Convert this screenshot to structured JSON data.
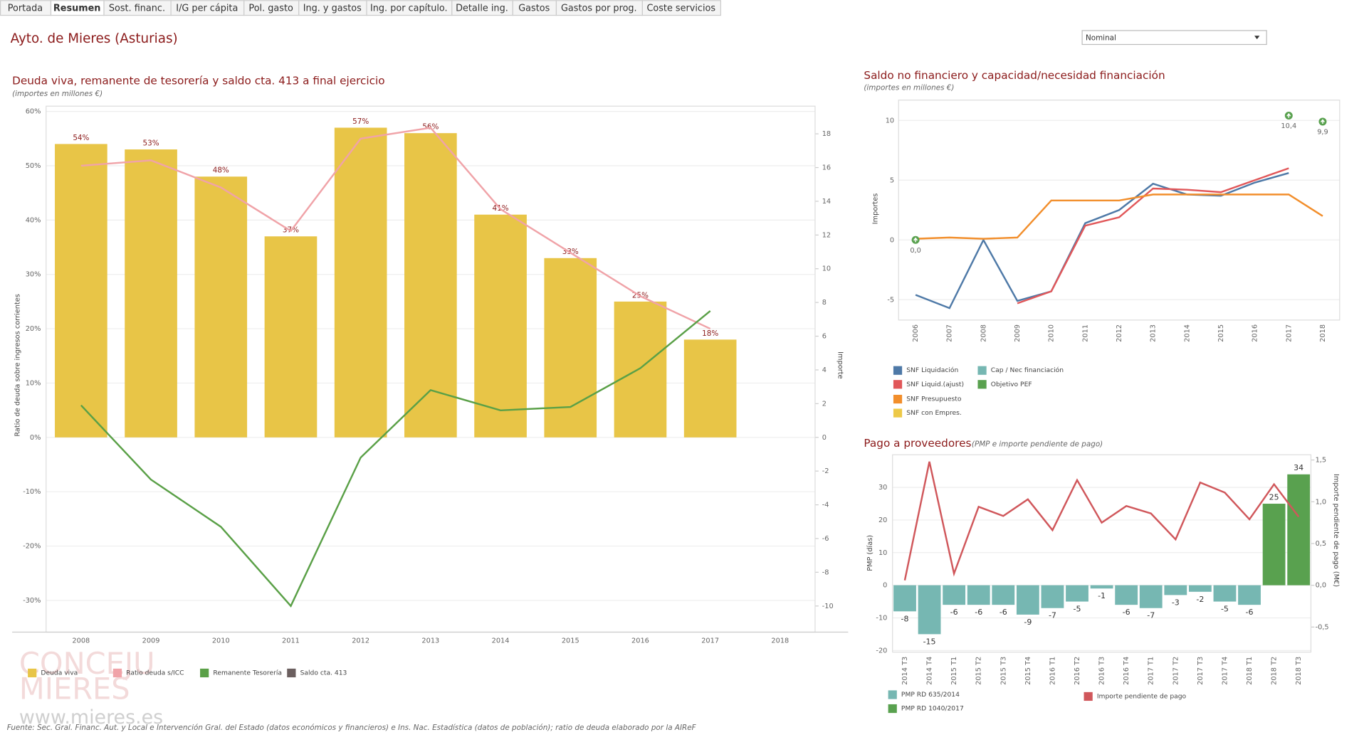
{
  "tabs": [
    "Portada",
    "Resumen",
    "Sost. financ.",
    "I/G per cápita",
    "Pol. gasto",
    "Ing. y gastos",
    "Ing. por capítulo.",
    "Detalle ing.",
    "Gastos",
    "Gastos por prog.",
    "Coste servicios"
  ],
  "header": {
    "title": "Ayto. de Mieres (Asturias)",
    "dropdown": "Nominal"
  },
  "footer": {
    "source": "Fuente: Sec. Gral. Financ. Aut. y Local e Intervención Gral. del Estado  (datos económicos y financieros) e Ins. Nac. Estadística (datos de población); ratio de deuda elaborado por la AIReF",
    "watermark": [
      "CONCEJU",
      "MIERES",
      "www.mieres.es"
    ]
  },
  "chart_data": [
    {
      "type": "bar",
      "title": "Deuda viva, remanente de tesorería y saldo cta. 413  a final ejercicio",
      "subtitle": "(importes en millones €)",
      "y_label": "Ratio de deuda sobre ingresos corrientes",
      "y2_label": "Importe",
      "categories": [
        "2008",
        "2009",
        "2010",
        "2011",
        "2012",
        "2013",
        "2014",
        "2015",
        "2016",
        "2017",
        "2018"
      ],
      "ylim": [
        -35.84,
        60.96
      ],
      "yticks": [
        {
          "value": 60,
          "label": "60%"
        },
        {
          "value": 50,
          "label": "50%"
        },
        {
          "value": 40,
          "label": "40%"
        },
        {
          "value": 30,
          "label": "30%"
        },
        {
          "value": 20,
          "label": "20%"
        },
        {
          "value": 10,
          "label": "10%"
        },
        {
          "value": 0,
          "label": "0%"
        },
        {
          "value": -10,
          "label": "-10%"
        },
        {
          "value": -20,
          "label": "-20%"
        },
        {
          "value": -30,
          "label": "-30%"
        }
      ],
      "y2lim": [
        -11.55,
        19.64
      ],
      "y2ticks": [
        18,
        16,
        14,
        12,
        10,
        8,
        6,
        4,
        2,
        0,
        -2,
        -4,
        -6,
        -8,
        -10
      ],
      "grid": true,
      "series": [
        {
          "name": "Deuda viva",
          "color": "#e8c547",
          "values": [
            54,
            53,
            48,
            37,
            57,
            56,
            41,
            33,
            25,
            18,
            null
          ],
          "value_labels": [
            "54%",
            "53%",
            "48%",
            "37%",
            "57%",
            "56%",
            "41%",
            "33%",
            "25%",
            "18%",
            null
          ]
        },
        {
          "name": "Ratio deuda s/ICC",
          "type": "line",
          "color": "#f0a3a8",
          "values": [
            50,
            51,
            46,
            38,
            55,
            57,
            42,
            34,
            26,
            20,
            null
          ]
        },
        {
          "name": "Remanente Tesorería",
          "type": "line",
          "axis": "y2",
          "color": "#5aa047",
          "values": [
            1.9,
            -2.5,
            -5.3,
            -10,
            -1.2,
            2.8,
            1.6,
            1.8,
            4.1,
            7.5,
            null
          ]
        },
        {
          "name": "Saldo cta. 413",
          "type": "line",
          "axis": "y2",
          "color": "#6b5f5f",
          "values": [
            null,
            null,
            null,
            null,
            null,
            null,
            null,
            null,
            null,
            null,
            null
          ]
        }
      ]
    },
    {
      "type": "line",
      "title": "Saldo no financiero y capacidad/necesidad financiación",
      "subtitle": "(importes en millones €)",
      "y_label": "Importes",
      "categories": [
        "2006",
        "2007",
        "2008",
        "2009",
        "2010",
        "2011",
        "2012",
        "2013",
        "2014",
        "2015",
        "2016",
        "2017",
        "2018"
      ],
      "ylim": [
        -6.7,
        11.7
      ],
      "yticks": [
        10,
        5,
        0,
        -5
      ],
      "grid": true,
      "series": [
        {
          "name": "SNF Liquidación",
          "color": "#4e79a7",
          "values": [
            -4.6,
            -5.7,
            0,
            -5.1,
            -4.3,
            1.4,
            2.5,
            4.7,
            3.8,
            3.7,
            4.8,
            5.6,
            null
          ]
        },
        {
          "name": "SNF Liquid.(ajust)",
          "color": "#e15759",
          "values": [
            null,
            null,
            null,
            -5.3,
            -4.3,
            1.2,
            1.9,
            4.3,
            4.2,
            4.0,
            5.0,
            6.0,
            null
          ]
        },
        {
          "name": "SNF Presupuesto",
          "color": "#f28e2b",
          "values": [
            0.1,
            0.2,
            0.1,
            0.2,
            3.3,
            3.3,
            3.3,
            3.8,
            3.8,
            3.8,
            3.8,
            3.8,
            2.0
          ]
        },
        {
          "name": "SNF con Empres.",
          "color": "#edc948",
          "values": [
            null,
            null,
            null,
            null,
            null,
            null,
            null,
            null,
            null,
            null,
            null,
            null,
            null
          ]
        },
        {
          "name": "Cap / Nec financiación",
          "color": "#76b7b2",
          "values": [
            null,
            null,
            null,
            null,
            null,
            null,
            null,
            null,
            null,
            null,
            null,
            null,
            null
          ]
        },
        {
          "name": "Objetivo PEF",
          "type": "scatter",
          "color": "#59a14f",
          "values": [
            0,
            null,
            null,
            null,
            null,
            null,
            null,
            null,
            null,
            null,
            null,
            10.4,
            9.9
          ],
          "value_labels": [
            "0,0",
            null,
            null,
            null,
            null,
            null,
            null,
            null,
            null,
            null,
            null,
            "10,4",
            "9,9"
          ]
        }
      ]
    },
    {
      "type": "bar",
      "title": "Pago a proveedores",
      "subtitle": "(PMP e importe pendiente de pago)",
      "y_label": "PMP (días)",
      "y2_label": "Importe pendiente de pago (M€)",
      "categories": [
        "2014 T3",
        "2014 T4",
        "2015 T1",
        "2015 T2",
        "2015 T3",
        "2015 T4",
        "2016 T1",
        "2016 T2",
        "2016 T3",
        "2016 T4",
        "2017 T1",
        "2017 T2",
        "2017 T3",
        "2017 T4",
        "2018 T1",
        "2018 T2",
        "2018 T3"
      ],
      "ylim": [
        -20.5,
        40
      ],
      "yticks": [
        30,
        20,
        10,
        0,
        -10,
        -20
      ],
      "y2lim": [
        -0.8,
        1.5625
      ],
      "y2ticks": [
        {
          "value": 1.5,
          "label": "1,5"
        },
        {
          "value": 1,
          "label": "1,0"
        },
        {
          "value": 0.5,
          "label": "0,5"
        },
        {
          "value": 0,
          "label": "0,0"
        },
        {
          "value": -0.5,
          "label": "-0,5"
        }
      ],
      "grid": true,
      "series": [
        {
          "name": "PMP RD 635/2014",
          "color": "#76b7b2",
          "values": [
            -8,
            -15,
            -6,
            -6,
            -6,
            -9,
            -7,
            -5,
            -1,
            -6,
            -7,
            -3,
            -2,
            -5,
            -6,
            null,
            null
          ]
        },
        {
          "name": "PMP RD 1040/2017",
          "color": "#59a14f",
          "values": [
            null,
            null,
            null,
            null,
            null,
            null,
            null,
            null,
            null,
            null,
            null,
            null,
            null,
            null,
            null,
            25,
            34
          ]
        },
        {
          "name": "Importe pendiente de pago",
          "type": "line",
          "axis": "y2",
          "color": "#d0575b",
          "values": [
            0.06,
            1.48,
            0.14,
            0.94,
            0.83,
            1.03,
            0.66,
            1.26,
            0.75,
            0.95,
            0.86,
            0.55,
            1.23,
            1.11,
            0.79,
            1.21,
            0.82
          ]
        }
      ]
    }
  ]
}
